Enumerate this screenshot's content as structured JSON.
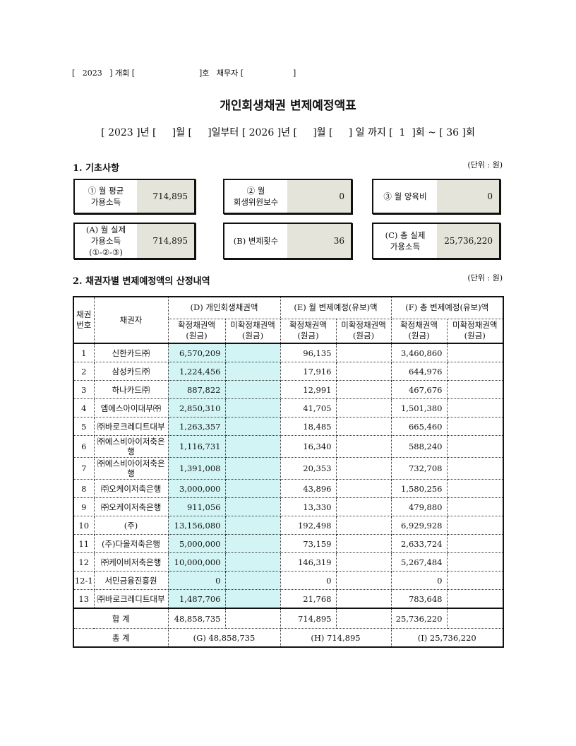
{
  "header_line": "[   2023   ] 개회 [                          ]호   채무자 [                    ]",
  "title": "개인회생채권 변제예정액표",
  "period": "[ 2023 ]년 [     ]월 [     ]일부터 [ 2026 ]년 [     ]월 [     ] 일 까지 [  1  ]회 ~ [ 36 ]회",
  "section1": {
    "title": "1. 기초사항",
    "unit": "(단위 : 원)",
    "boxes": [
      {
        "label": "① 월 평균\n가용소득",
        "value": "714,895"
      },
      {
        "label": "② 월\n회생위원보수",
        "value": "0"
      },
      {
        "label": "③ 월 양육비",
        "value": "0"
      },
      {
        "label": "(A) 월 실제\n가용소득\n(①-②-③)",
        "value": "714,895"
      },
      {
        "label": "(B) 변제횟수",
        "value": "36"
      },
      {
        "label": "(C) 총 실제\n가용소득",
        "value": "25,736,220"
      }
    ]
  },
  "section2": {
    "title": "2. 채권자별 변제예정액의 산정내역",
    "unit": "(단위 : 원)",
    "headers": {
      "no": "채권\n번호",
      "creditor": "채권자",
      "d": "(D) 개인회생채권액",
      "e": "(E) 월 변제예정(유보)액",
      "f": "(F) 총 변제예정(유보)액",
      "confirmed": "확정채권액\n(원금)",
      "unconfirmed": "미확정채권액\n(원금)"
    },
    "rows": [
      {
        "no": "1",
        "creditor": "신한카드㈜",
        "d": "6,570,209",
        "e": "96,135",
        "f": "3,460,860"
      },
      {
        "no": "2",
        "creditor": "삼성카드㈜",
        "d": "1,224,456",
        "e": "17,916",
        "f": "644,976"
      },
      {
        "no": "3",
        "creditor": "하나카드㈜",
        "d": "887,822",
        "e": "12,991",
        "f": "467,676"
      },
      {
        "no": "4",
        "creditor": "엠에스아이대부㈜",
        "d": "2,850,310",
        "e": "41,705",
        "f": "1,501,380"
      },
      {
        "no": "5",
        "creditor": "㈜바로크레디트대부",
        "d": "1,263,357",
        "e": "18,485",
        "f": "665,460"
      },
      {
        "no": "6",
        "creditor": "㈜에스비아이저축은행",
        "d": "1,116,731",
        "e": "16,340",
        "f": "588,240"
      },
      {
        "no": "7",
        "creditor": "㈜에스비아이저축은행",
        "d": "1,391,008",
        "e": "20,353",
        "f": "732,708"
      },
      {
        "no": "8",
        "creditor": "㈜오케이저축은행",
        "d": "3,000,000",
        "e": "43,896",
        "f": "1,580,256"
      },
      {
        "no": "9",
        "creditor": "㈜오케이저축은행",
        "d": "911,056",
        "e": "13,330",
        "f": "479,880"
      },
      {
        "no": "10",
        "creditor": "(주)",
        "d": "13,156,080",
        "e": "192,498",
        "f": "6,929,928"
      },
      {
        "no": "11",
        "creditor": "(주)다올저축은행",
        "d": "5,000,000",
        "e": "73,159",
        "f": "2,633,724"
      },
      {
        "no": "12",
        "creditor": "㈜케이비저축은행",
        "d": "10,000,000",
        "e": "146,319",
        "f": "5,267,484"
      },
      {
        "no": "12-1",
        "creditor": "서민금융진흥원",
        "d": "0",
        "e": "0",
        "f": "0"
      },
      {
        "no": "13",
        "creditor": "㈜바로크레디트대부",
        "d": "1,487,706",
        "e": "21,768",
        "f": "783,648"
      }
    ],
    "sum": {
      "label": "합 계",
      "d": "48,858,735",
      "e": "714,895",
      "f": "25,736,220"
    },
    "total": {
      "label": "총 계",
      "g": "(G) 48,858,735",
      "h": "(H) 714,895",
      "i": "(I) 25,736,220"
    }
  }
}
